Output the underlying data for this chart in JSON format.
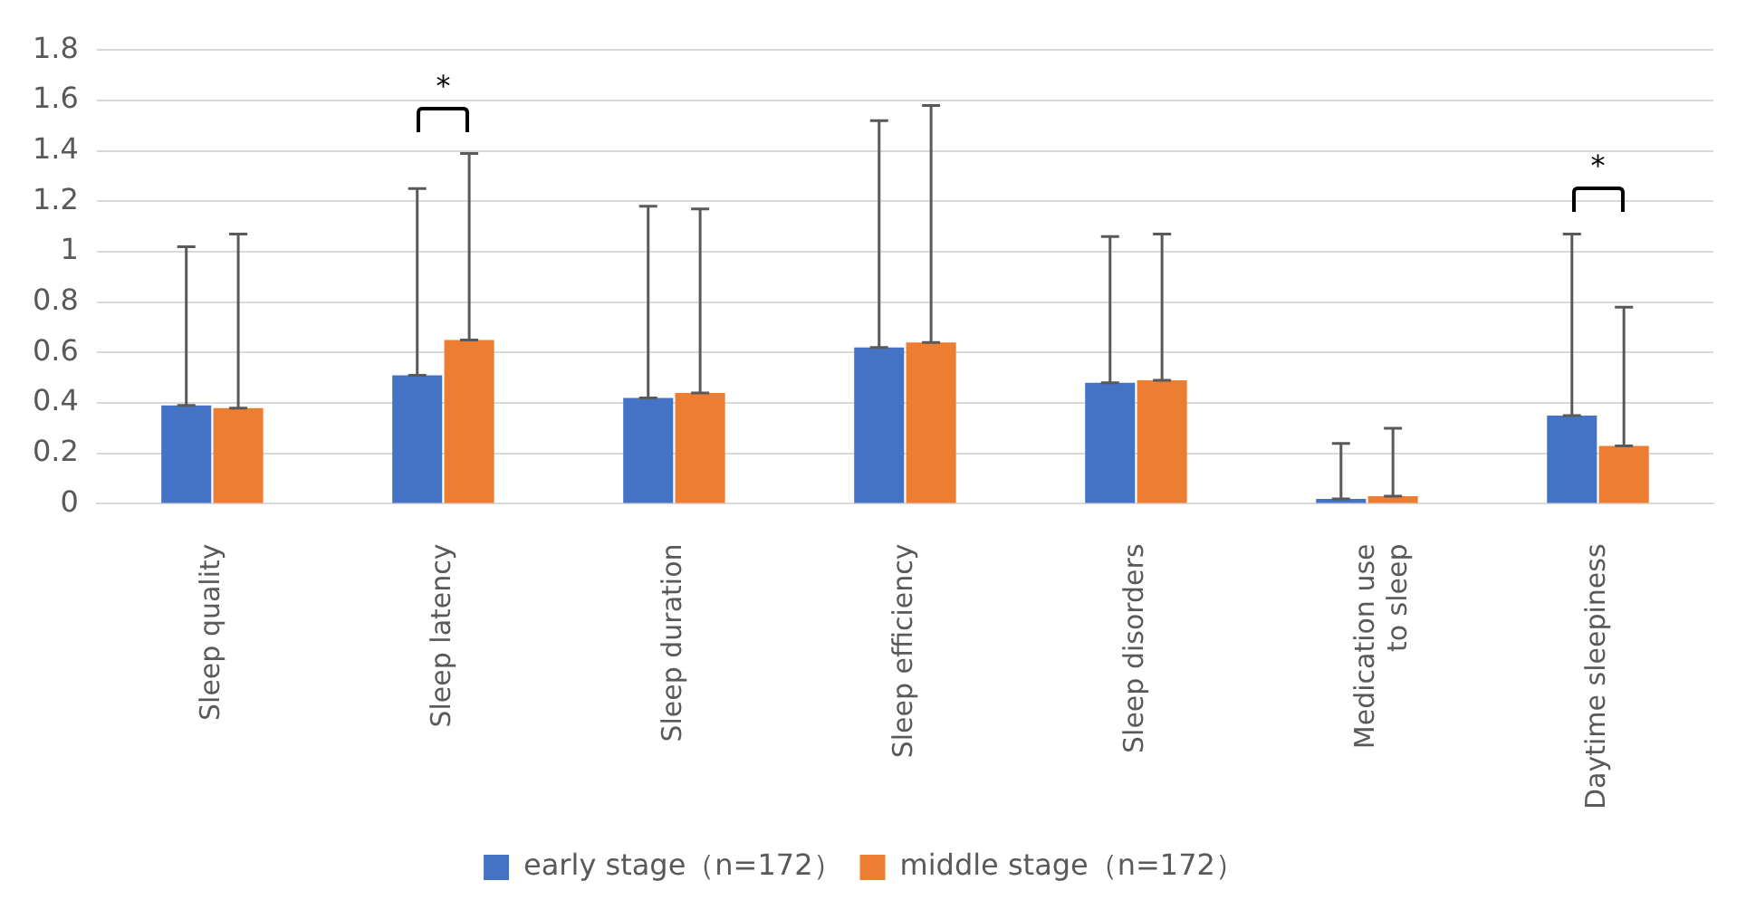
{
  "chart_data": {
    "type": "bar",
    "categories": [
      "Sleep quality",
      "Sleep latency",
      "Sleep duration",
      "Sleep efficiency",
      "Sleep disorders",
      "Medication use to sleep",
      "Daytime sleepiness"
    ],
    "series": [
      {
        "name": "early stage（n=172）",
        "color": "#4472c4",
        "values": [
          0.39,
          0.51,
          0.42,
          0.62,
          0.48,
          0.02,
          0.35
        ],
        "errors": [
          [
            0.39,
            1.02
          ],
          [
            0.51,
            1.25
          ],
          [
            0.42,
            1.18
          ],
          [
            0.62,
            1.52
          ],
          [
            0.48,
            1.06
          ],
          [
            0.02,
            0.24
          ],
          [
            0.35,
            1.07
          ]
        ]
      },
      {
        "name": "middle stage（n=172）",
        "color": "#ed7d31",
        "values": [
          0.38,
          0.65,
          0.44,
          0.64,
          0.49,
          0.03,
          0.23
        ],
        "errors": [
          [
            0.38,
            1.07
          ],
          [
            0.65,
            1.39
          ],
          [
            0.44,
            1.17
          ],
          [
            0.64,
            1.58
          ],
          [
            0.49,
            1.07
          ],
          [
            0.03,
            0.3
          ],
          [
            0.23,
            0.78
          ]
        ]
      }
    ],
    "ylim": [
      0,
      1.8
    ],
    "yticks": [
      0,
      0.2,
      0.4,
      0.6,
      0.8,
      1,
      1.2,
      1.4,
      1.6,
      1.8
    ],
    "grid": "y",
    "legend": "bottom",
    "annotations": [
      "*",
      "*"
    ]
  }
}
